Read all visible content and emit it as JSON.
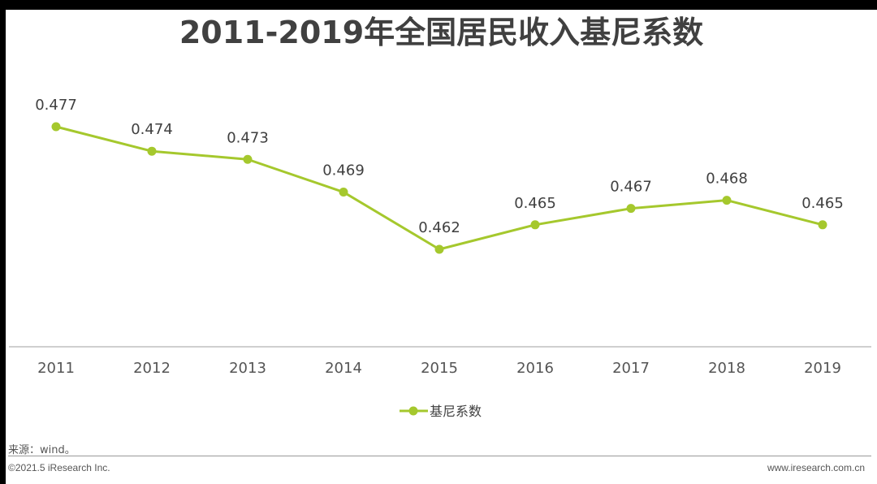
{
  "chart_data": {
    "type": "line",
    "title": "2011-2019年全国居民收入基尼系数",
    "categories": [
      "2011",
      "2012",
      "2013",
      "2014",
      "2015",
      "2016",
      "2017",
      "2018",
      "2019"
    ],
    "series": [
      {
        "name": "基尼系数",
        "values": [
          0.477,
          0.474,
          0.473,
          0.469,
          0.462,
          0.465,
          0.467,
          0.468,
          0.465
        ],
        "labels": [
          "0.477",
          "0.474",
          "0.473",
          "0.469",
          "0.462",
          "0.465",
          "0.467",
          "0.468",
          "0.465"
        ],
        "color": "#a5c82d"
      }
    ],
    "legend_position": "bottom",
    "grid": false,
    "xlabel": "",
    "ylabel": ""
  },
  "footer": {
    "source": "来源：wind。",
    "copyright": "©2021.5 iResearch Inc.",
    "site": "www.iresearch.com.cn"
  },
  "colors": {
    "line": "#a5c82d",
    "axis": "#bfbfbf",
    "text": "#404040",
    "background": "#000000"
  }
}
